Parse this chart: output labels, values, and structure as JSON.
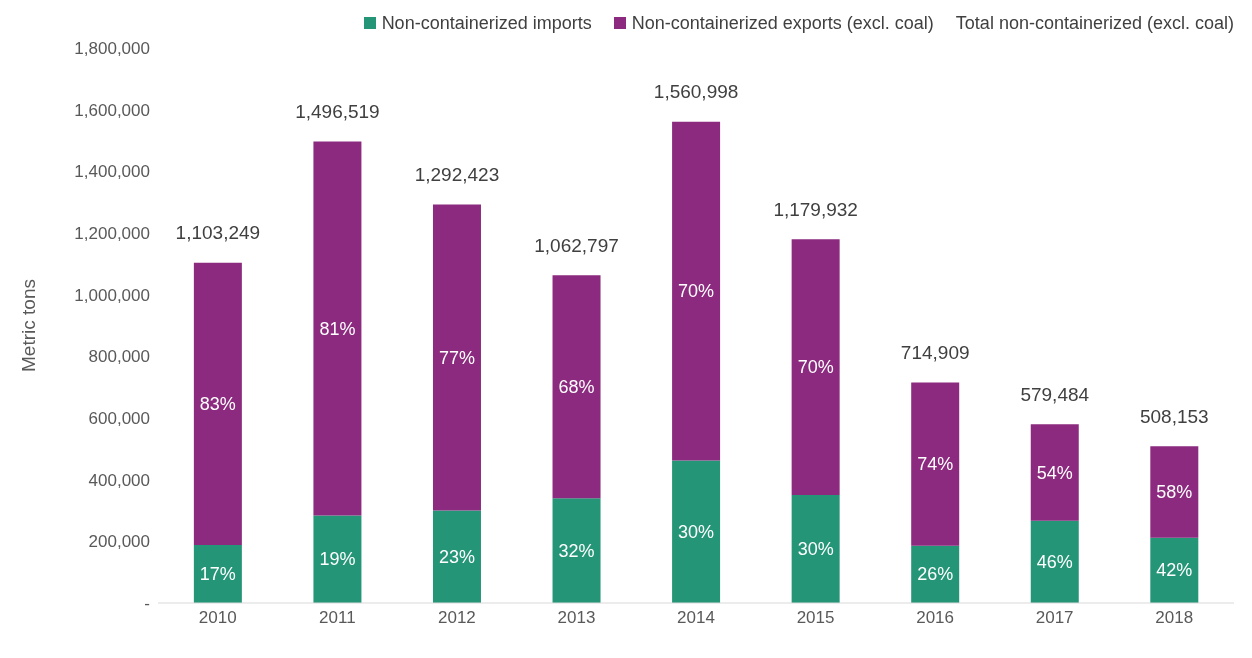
{
  "chart_data": {
    "type": "bar",
    "stacked": true,
    "ylabel": "Metric tons",
    "categories": [
      "2010",
      "2011",
      "2012",
      "2013",
      "2014",
      "2015",
      "2016",
      "2017",
      "2018"
    ],
    "series": [
      {
        "name": "Non-containerized imports",
        "color": "#259577",
        "values": [
          188000,
          284000,
          300000,
          340000,
          462000,
          350000,
          186000,
          267000,
          212000
        ]
      },
      {
        "name": "Non-containerized exports (excl. coal)",
        "color": "#8b2a7e",
        "values": [
          915249,
          1212519,
          992423,
          722797,
          1098998,
          829932,
          528909,
          312484,
          296153
        ]
      }
    ],
    "totals": [
      "1,103,249",
      "1,496,519",
      "1,292,423",
      "1,062,797",
      "1,560,998",
      "1,179,932",
      "714,909",
      "579,484",
      "508,153"
    ],
    "annotations": [
      "Total non-containerized (excl. coal)",
      "17%",
      "19%",
      "23%",
      "32%",
      "30%",
      "30%",
      "26%",
      "46%",
      "42%",
      "83%",
      "81%",
      "77%",
      "68%",
      "70%",
      "70%",
      "74%",
      "54%",
      "58%"
    ],
    "ylim": [
      0,
      1800000
    ],
    "yticks": [
      {
        "value": 0,
        "label": "-"
      },
      {
        "value": 200000,
        "label": "200,000"
      },
      {
        "value": 400000,
        "label": "400,000"
      },
      {
        "value": 600000,
        "label": "600,000"
      },
      {
        "value": 800000,
        "label": "800,000"
      },
      {
        "value": 1000000,
        "label": "1,000,000"
      },
      {
        "value": 1200000,
        "label": "1,200,000"
      },
      {
        "value": 1400000,
        "label": "1,400,000"
      },
      {
        "value": 1600000,
        "label": "1,600,000"
      },
      {
        "value": 1800000,
        "label": "1,800,000"
      }
    ],
    "legend": "top"
  }
}
